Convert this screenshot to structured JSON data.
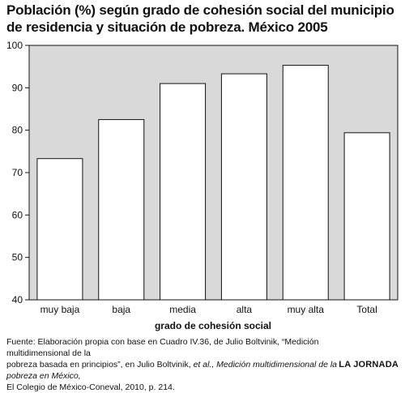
{
  "chart_data": {
    "type": "bar",
    "title": "Población (%) según grado de cohesión social del municipio de residencia y situación de pobreza. México  2005",
    "xlabel": "grado de cohesión social",
    "ylabel": "",
    "categories": [
      "muy baja",
      "baja",
      "media",
      "alta",
      "muy alta",
      "Total"
    ],
    "values": [
      73.3,
      82.5,
      91.0,
      93.3,
      95.3,
      79.4
    ],
    "ylim": [
      40,
      100
    ],
    "yticks": [
      40,
      50,
      60,
      70,
      80,
      90,
      100
    ],
    "grid": false,
    "colors": {
      "bar_fill": "#ffffff",
      "bar_stroke": "#111111",
      "plot_background": "#d9d9d9",
      "frame": "#111111"
    }
  },
  "source": {
    "line1_prefix": "Fuente: Elaboración propia con base en Cuadro IV.36, de Julio Boltvinik, “Medición multidimensional de la",
    "line2_prefix": "pobreza basada en principios”, en Julio Boltvinik, ",
    "line2_italic1": "et al.,",
    "line2_mid": " ",
    "line2_italic2": "Medición multidimensional de la pobreza en México,",
    "line3": "El Colegio de México-Coneval, 2010, p. 214."
  },
  "brand": "LA JORNADA"
}
